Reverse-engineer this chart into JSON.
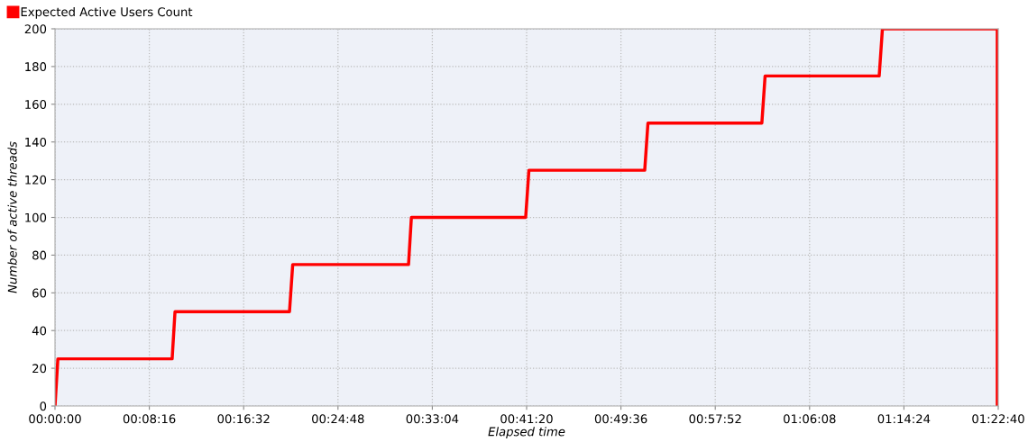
{
  "chart_data": {
    "type": "line",
    "xlabel": "Elapsed time",
    "ylabel": "Number of active threads",
    "series": [
      {
        "name": "Expected Active Users Count",
        "color": "#ff0000",
        "x": [
          0,
          15,
          616,
          631,
          1233,
          1250,
          1859,
          1874,
          2475,
          2492,
          3101,
          3118,
          3717,
          3734,
          4334,
          4351,
          4955,
          4955
        ],
        "values": [
          0,
          25,
          25,
          50,
          50,
          75,
          75,
          100,
          100,
          125,
          125,
          150,
          150,
          175,
          175,
          200,
          200,
          0
        ]
      }
    ],
    "xlim": [
      0,
      4960
    ],
    "ylim": [
      0,
      200
    ],
    "xticks": [
      {
        "value": 0,
        "label": "00:00:00"
      },
      {
        "value": 496,
        "label": "00:08:16"
      },
      {
        "value": 992,
        "label": "00:16:32"
      },
      {
        "value": 1488,
        "label": "00:24:48"
      },
      {
        "value": 1984,
        "label": "00:33:04"
      },
      {
        "value": 2480,
        "label": "00:41:20"
      },
      {
        "value": 2976,
        "label": "00:49:36"
      },
      {
        "value": 3472,
        "label": "00:57:52"
      },
      {
        "value": 3968,
        "label": "01:06:08"
      },
      {
        "value": 4464,
        "label": "01:14:24"
      },
      {
        "value": 4960,
        "label": "01:22:40"
      }
    ],
    "yticks": [
      0,
      20,
      40,
      60,
      80,
      100,
      120,
      140,
      160,
      180,
      200
    ],
    "grid": true,
    "legend": "top left",
    "marker": "none",
    "line_style": "solid"
  }
}
